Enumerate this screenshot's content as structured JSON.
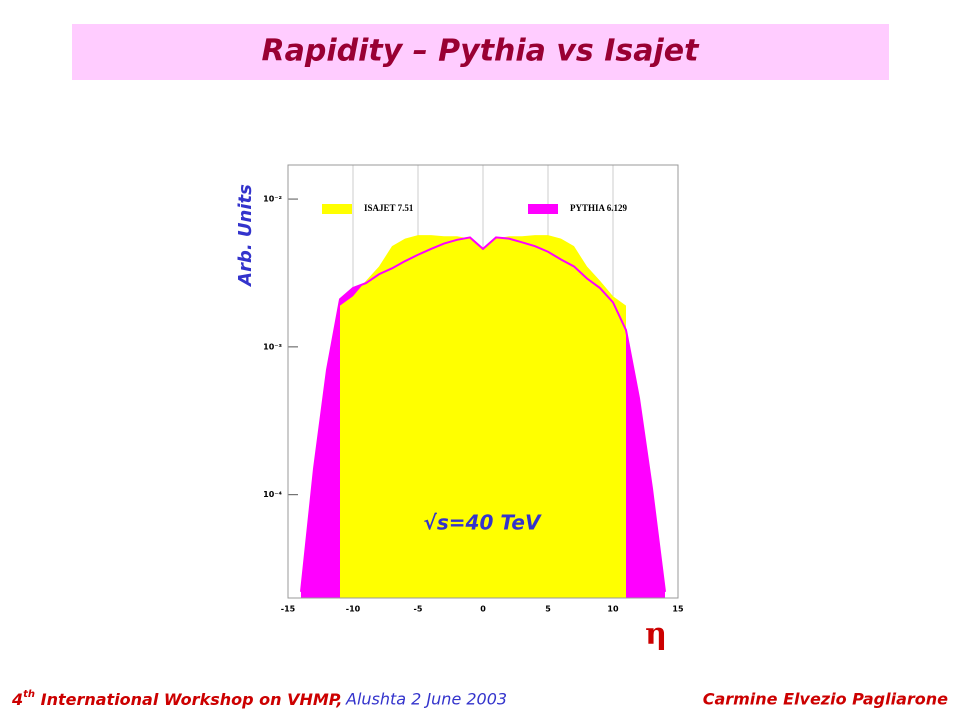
{
  "slide": {
    "title": "Rapidity – Pythia vs Isajet",
    "footer_number": "4",
    "footer_suffix": "th",
    "footer_workshop": " International Workshop on VHMP,",
    "footer_place": "Alushta 2 June 2003",
    "footer_author": "Carmine Elvezio Pagliarone"
  },
  "chart_data": {
    "type": "area",
    "ylabel": "Arb. Units",
    "xlabel": "η",
    "annotation": "√s=40 TeV",
    "log_y": true,
    "grid": true,
    "legend": "top",
    "x": [
      -14,
      -13,
      -12,
      -11,
      -10,
      -9,
      -8,
      -7,
      -6,
      -5,
      -4,
      -3,
      -2,
      -1,
      0,
      1,
      2,
      3,
      4,
      5,
      6,
      7,
      8,
      9,
      10,
      11,
      12,
      13,
      14
    ],
    "series": [
      {
        "name": "PYTHIA 6.129",
        "color": "#ff00ff",
        "values": [
          2.2e-05,
          0.00015,
          0.0007,
          0.0021,
          0.0025,
          0.0027,
          0.0031,
          0.0034,
          0.0038,
          0.0042,
          0.0046,
          0.005,
          0.0053,
          0.0055,
          0.0046,
          0.0055,
          0.0054,
          0.0051,
          0.0048,
          0.0044,
          0.0039,
          0.0035,
          0.0029,
          0.0025,
          0.002,
          0.0013,
          0.00045,
          0.00011,
          2.2e-05
        ]
      },
      {
        "name": "ISAJET 7.51",
        "color": "#ffff00",
        "values": [
          null,
          null,
          null,
          0.0019,
          0.0022,
          0.0028,
          0.0035,
          0.0048,
          0.0054,
          0.0057,
          0.0057,
          0.0056,
          0.0056,
          0.0054,
          0.0047,
          0.0054,
          0.0056,
          0.0056,
          0.0057,
          0.0057,
          0.0054,
          0.0048,
          0.0035,
          0.0028,
          0.0022,
          0.0019,
          null,
          null,
          null
        ]
      }
    ],
    "xlim": [
      -15,
      15
    ],
    "xticks": [
      -15,
      -10,
      -5,
      0,
      5,
      10,
      15
    ],
    "ylim": [
      2e-05,
      0.017
    ],
    "yticks": [
      {
        "value": 0.01,
        "label": "10⁻²"
      },
      {
        "value": 0.001,
        "label": "10⁻³"
      },
      {
        "value": 0.0001,
        "label": "10⁻⁴"
      }
    ]
  }
}
